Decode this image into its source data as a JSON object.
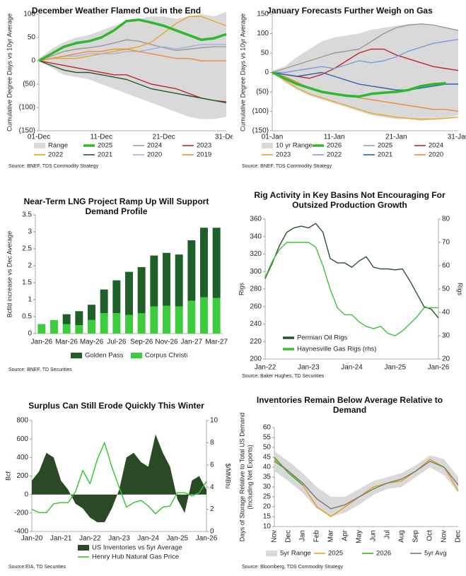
{
  "chart_data": [
    {
      "type": "line",
      "title": "December Weather Flamed Out in the End",
      "y_label": "Cumulative Degree Days vs 10yr Average",
      "categories": [
        "01-Dec",
        null,
        null,
        null,
        null,
        "11-Dec",
        null,
        null,
        null,
        null,
        "21-Dec",
        null,
        null,
        null,
        null,
        "31-Dec"
      ],
      "ylim": [
        -150,
        100
      ],
      "yticks": [
        {
          "value": -150,
          "label": "(150)"
        },
        {
          "value": -100,
          "label": "(100)"
        },
        {
          "value": -50,
          "label": "(50)"
        },
        0,
        50,
        100
      ],
      "legend": "bottom",
      "series": [
        {
          "name": "Range",
          "type": "band",
          "color": "#d9d9d9",
          "low": [
            0,
            -15,
            -30,
            -35,
            -40,
            -50,
            -60,
            -70,
            -80,
            -90,
            -100,
            -110,
            -120,
            -125,
            -125,
            -120
          ],
          "high": [
            5,
            25,
            40,
            50,
            55,
            65,
            75,
            85,
            90,
            95,
            95,
            90,
            95,
            100,
            95,
            105
          ]
        },
        {
          "name": "2025",
          "type": "line",
          "color": "#2db82d",
          "values": [
            0,
            15,
            30,
            38,
            42,
            50,
            65,
            85,
            88,
            82,
            75,
            65,
            55,
            45,
            48,
            57
          ]
        },
        {
          "name": "2024",
          "type": "line",
          "color": "#999999",
          "values": [
            0,
            10,
            20,
            25,
            28,
            32,
            38,
            45,
            42,
            35,
            28,
            22,
            25,
            28,
            30,
            30
          ]
        },
        {
          "name": "2023",
          "type": "line",
          "color": "#c0282d",
          "values": [
            0,
            -5,
            -10,
            -15,
            -20,
            -25,
            -30,
            -30,
            -40,
            -50,
            -55,
            -60,
            -70,
            -80,
            -85,
            -88
          ]
        },
        {
          "name": "2022",
          "type": "line",
          "color": "#e8a720",
          "values": [
            0,
            5,
            5,
            5,
            10,
            15,
            20,
            25,
            30,
            40,
            60,
            80,
            95,
            95,
            85,
            75
          ]
        },
        {
          "name": "2021",
          "type": "line",
          "color": "#1e5c2a",
          "values": [
            0,
            -10,
            -20,
            -25,
            -25,
            -30,
            -35,
            -40,
            -50,
            -60,
            -65,
            -70,
            -75,
            -80,
            -85,
            -90
          ]
        },
        {
          "name": "2020",
          "type": "line",
          "color": "#9db3e6",
          "values": [
            0,
            5,
            10,
            10,
            15,
            15,
            15,
            20,
            20,
            25,
            30,
            25,
            30,
            35,
            35,
            35
          ]
        },
        {
          "name": "2019",
          "type": "line",
          "color": "#f08a3c",
          "values": [
            0,
            5,
            10,
            15,
            20,
            20,
            25,
            25,
            20,
            15,
            10,
            5,
            5,
            0,
            0,
            0
          ]
        }
      ],
      "source": "Source: BNEF, TDS Commodity Strategy"
    },
    {
      "type": "line",
      "title": "January Forecasts Further Weigh on Gas",
      "y_label": "Cumulative Degree Days vs 10yr Average",
      "categories": [
        "01-Jan",
        null,
        null,
        null,
        null,
        "11-Jan",
        null,
        null,
        null,
        null,
        "21-Jan",
        null,
        null,
        null,
        null,
        "31-Jan"
      ],
      "ylim": [
        -150,
        150
      ],
      "yticks": [
        {
          "value": -150,
          "label": "(150)"
        },
        {
          "value": -100,
          "label": "(100)"
        },
        {
          "value": -50,
          "label": "(50)"
        },
        0,
        50,
        100,
        150
      ],
      "legend": "bottom",
      "series": [
        {
          "name": "10 yr Range",
          "type": "band",
          "color": "#d9d9d9",
          "low": [
            0,
            -25,
            -45,
            -60,
            -70,
            -80,
            -90,
            -100,
            -110,
            -115,
            -120,
            -120,
            -125,
            -120,
            -118,
            -110
          ],
          "high": [
            5,
            15,
            40,
            60,
            80,
            90,
            95,
            100,
            110,
            115,
            120,
            125,
            125,
            120,
            115,
            110
          ]
        },
        {
          "name": "2026",
          "type": "line",
          "color": "#2db82d",
          "values": [
            0,
            -15,
            -30,
            -40,
            -50,
            -55,
            -60,
            -62,
            -55,
            -52,
            -50,
            -45,
            -35,
            -30,
            -28,
            null
          ]
        },
        {
          "name": "2025",
          "type": "line",
          "color": "#999999",
          "values": [
            0,
            10,
            20,
            30,
            40,
            50,
            55,
            60,
            80,
            100,
            115,
            122,
            125,
            122,
            115,
            108
          ]
        },
        {
          "name": "2024",
          "type": "line",
          "color": "#c0282d",
          "values": [
            0,
            -5,
            -10,
            -15,
            -5,
            10,
            30,
            50,
            60,
            60,
            45,
            35,
            25,
            15,
            10,
            5
          ]
        },
        {
          "name": "2023",
          "type": "line",
          "color": "#e8a720",
          "values": [
            0,
            -20,
            -40,
            -55,
            -65,
            -75,
            -85,
            -95,
            -105,
            -110,
            -115,
            -118,
            -120,
            -120,
            -118,
            -115
          ]
        },
        {
          "name": "2022",
          "type": "line",
          "color": "#7b9be0",
          "values": [
            0,
            0,
            5,
            10,
            15,
            10,
            20,
            30,
            25,
            30,
            40,
            55,
            65,
            75,
            80,
            85
          ]
        },
        {
          "name": "2021",
          "type": "line",
          "color": "#2e5fa8",
          "values": [
            0,
            -5,
            -10,
            -5,
            0,
            -10,
            -20,
            -30,
            -35,
            -40,
            -45,
            -45,
            -40,
            -35,
            -30,
            -30
          ]
        },
        {
          "name": "2020",
          "type": "line",
          "color": "#f08a3c",
          "values": [
            0,
            -10,
            -25,
            -40,
            -50,
            -55,
            -60,
            -65,
            -70,
            -75,
            -80,
            -85,
            -90,
            -95,
            -95,
            -100
          ]
        }
      ],
      "source": "Source: BNEF, TDS Commodity Strategy"
    },
    {
      "type": "bar",
      "title": "Near-Term LNG Project Ramp Up Will Support Demand Profile",
      "y_label": "Bcf/d increase vs Dec Average",
      "categories": [
        "Jan-26",
        null,
        "Mar-26",
        null,
        "May-26",
        null,
        "Jul-26",
        null,
        "Sep-26",
        null,
        "Nov-26",
        null,
        "Jan-27",
        null,
        "Mar-27"
      ],
      "ylim": [
        0,
        3.5
      ],
      "yticks": [
        0,
        0.5,
        1,
        1.5,
        2,
        2.5,
        3,
        3.5
      ],
      "legend": "bottom",
      "stacked": true,
      "series": [
        {
          "name": "Golden Pass",
          "color": "#1f5f2a",
          "values": [
            0,
            0,
            0.29,
            0.41,
            0.45,
            0.7,
            0.97,
            1.27,
            1.36,
            1.5,
            1.56,
            1.53,
            1.78,
            2.05,
            2.07
          ]
        },
        {
          "name": "Corpus Christi",
          "color": "#3dcc3d",
          "values": [
            0.28,
            0.4,
            0.28,
            0.25,
            0.4,
            0.6,
            0.6,
            0.55,
            0.6,
            0.8,
            0.82,
            0.8,
            0.97,
            1.07,
            1.05
          ]
        }
      ],
      "source": "Source: BNEF, TD Securities"
    },
    {
      "type": "line",
      "title": "Rig Activity in Key Basins Not Encouraging For Outsized Production Growth",
      "y_label": "Rigs",
      "y2_label": "Rigs",
      "categories": [
        "Jan-22",
        null,
        null,
        null,
        null,
        null,
        "Jan-23",
        null,
        null,
        null,
        null,
        null,
        "Jan-24",
        null,
        null,
        null,
        null,
        null,
        "Jan-25",
        null,
        null,
        null,
        null,
        null,
        "Jan-26"
      ],
      "ylim": [
        200,
        360
      ],
      "yticks": [
        200,
        220,
        240,
        260,
        280,
        300,
        320,
        340,
        360
      ],
      "y2lim": [
        20,
        80
      ],
      "y2ticks": [
        20,
        30,
        40,
        50,
        60,
        70,
        80
      ],
      "legend": "lower left",
      "series": [
        {
          "name": "Permian Oil Rigs",
          "type": "line",
          "color": "#2a5230",
          "values": [
            292,
            310,
            330,
            345,
            350,
            352,
            350,
            355,
            345,
            315,
            310,
            310,
            305,
            312,
            317,
            305,
            303,
            303,
            302,
            303,
            290,
            275,
            260,
            257,
            247
          ]
        },
        {
          "name": "Haynesville Gas Rigs (rhs)",
          "type": "line",
          "axis": "y2",
          "color": "#3cc33c",
          "values": [
            55,
            62,
            67,
            70,
            70,
            70,
            70,
            68,
            60,
            50,
            42,
            39,
            39,
            36,
            34,
            33,
            34,
            31,
            30,
            32,
            35,
            38,
            42,
            42,
            42
          ]
        }
      ],
      "source": "Source: Baker Hughes, TD Securities"
    },
    {
      "type": "area",
      "title": "Surplus Can Still Erode Quickly This Winter",
      "y_label": "Bcf",
      "y2_label": "$/MMBtu",
      "categories": [
        "Jan-20",
        null,
        null,
        null,
        "Jan-21",
        null,
        null,
        null,
        "Jan-22",
        null,
        null,
        null,
        "Jan-23",
        null,
        null,
        null,
        "Jan-24",
        null,
        null,
        null,
        "Jan-25",
        null,
        null,
        null,
        "Jan-26"
      ],
      "ylim": [
        -400,
        800
      ],
      "yticks": [
        -400,
        -200,
        0,
        200,
        400,
        600,
        800
      ],
      "y2lim": [
        0,
        10
      ],
      "y2ticks": [
        0,
        2,
        4,
        6,
        8,
        10
      ],
      "legend": "bottom",
      "series": [
        {
          "name": "US Inventories vs 5yr Average",
          "type": "area",
          "color": "#2a4a25",
          "values": [
            150,
            250,
            450,
            400,
            150,
            50,
            -100,
            -150,
            -250,
            -300,
            -300,
            -150,
            50,
            400,
            450,
            350,
            300,
            650,
            450,
            300,
            -50,
            -200,
            150,
            200,
            50
          ]
        },
        {
          "name": "Henry Hub Natural Gas Price",
          "type": "line",
          "axis": "y2",
          "color": "#2ec62e",
          "values": [
            2.0,
            1.7,
            1.7,
            2.5,
            2.6,
            2.6,
            3.6,
            5.5,
            4.3,
            6.5,
            8.0,
            5.8,
            4.0,
            2.2,
            2.6,
            2.8,
            2.3,
            1.6,
            2.2,
            2.3,
            3.5,
            3.5,
            3.2,
            3.5,
            4.5
          ]
        }
      ],
      "source": "Source:EIA, TD Securities"
    },
    {
      "type": "line",
      "title": "Inventories Remain Below Average Relative to Demand",
      "y_label": [
        "Days of Storage Relative to Total US Demand",
        "(Including Net Exports)"
      ],
      "categories": [
        "Nov",
        "Dec",
        "Jan",
        "Feb",
        "Mar",
        "Apr",
        "May",
        "Jun",
        "Jul",
        "Aug",
        "Sep",
        "Oct",
        "Nov",
        "Dec"
      ],
      "ylim": [
        10,
        60
      ],
      "yticks": [
        10,
        15,
        20,
        25,
        30,
        35,
        40,
        45,
        50,
        55,
        60
      ],
      "legend": "bottom",
      "series": [
        {
          "name": "5yr Range",
          "type": "band",
          "color": "#d9d9d9",
          "low": [
            38,
            33,
            27,
            19,
            15,
            17,
            21,
            26,
            29,
            30,
            35,
            40,
            36,
            27
          ],
          "high": [
            48,
            43,
            37,
            30,
            25,
            25,
            29,
            33,
            35,
            37,
            41,
            46,
            44,
            35
          ]
        },
        {
          "name": "2025",
          "type": "line",
          "color": "#e0a020",
          "values": [
            44,
            38,
            31,
            20,
            15,
            20,
            25,
            30,
            32,
            33,
            38,
            44,
            40,
            28
          ]
        },
        {
          "name": "2026",
          "type": "line",
          "color": "#2db82d",
          "values": [
            45,
            37,
            31,
            null,
            null,
            null,
            null,
            null,
            null,
            null,
            null,
            null,
            null,
            null
          ]
        },
        {
          "name": "5yr Avg",
          "type": "line",
          "color": "#777777",
          "values": [
            43,
            38,
            32,
            24,
            19,
            21,
            25,
            29,
            32,
            34,
            38,
            43,
            40,
            31
          ]
        }
      ],
      "source": "Source: Bloomberg, TDS Commodity Strategy"
    }
  ]
}
